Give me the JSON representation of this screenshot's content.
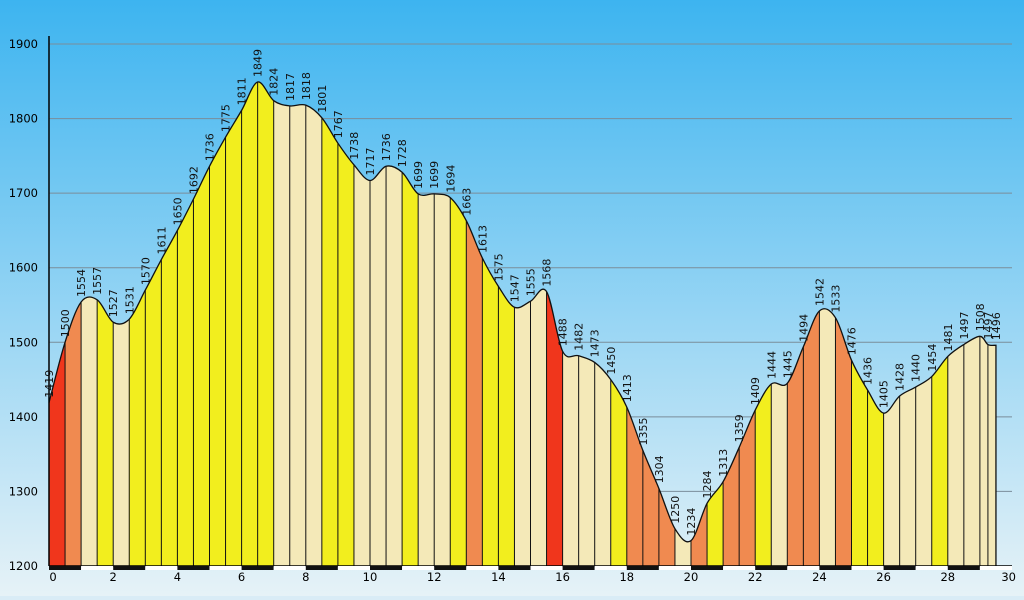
{
  "chart_data": {
    "type": "area",
    "title": "",
    "xlabel": "",
    "ylabel": "",
    "xlim": [
      0,
      30
    ],
    "ylim": [
      1200,
      1900
    ],
    "grid": true,
    "legend": "none",
    "x_ticks": [
      "0",
      "2",
      "4",
      "6",
      "8",
      "10",
      "12",
      "14",
      "16",
      "18",
      "20",
      "22",
      "24",
      "26",
      "28",
      "30"
    ],
    "y_ticks": [
      "1200",
      "1300",
      "1400",
      "1500",
      "1600",
      "1700",
      "1800",
      "1900"
    ],
    "colors": {
      "sky_top": "#3db4f0",
      "sky_bottom": "#e6f2f7",
      "grade_steep": "#f0361c",
      "grade_hard": "#f08a50",
      "grade_moderate": "#f2ee1e",
      "grade_flat": "#f4e9b8",
      "outline": "#111111"
    },
    "series": [
      {
        "points": [
          {
            "x": 0.0,
            "y": 1419,
            "label": "1419"
          },
          {
            "x": 0.5,
            "y": 1500,
            "label": "1500"
          },
          {
            "x": 1.0,
            "y": 1554,
            "label": "1554"
          },
          {
            "x": 1.5,
            "y": 1557,
            "label": "1557"
          },
          {
            "x": 2.0,
            "y": 1527,
            "label": "1527"
          },
          {
            "x": 2.5,
            "y": 1531,
            "label": "1531"
          },
          {
            "x": 3.0,
            "y": 1570,
            "label": "1570"
          },
          {
            "x": 3.5,
            "y": 1611,
            "label": "1611"
          },
          {
            "x": 4.0,
            "y": 1650,
            "label": "1650"
          },
          {
            "x": 4.5,
            "y": 1692,
            "label": "1692"
          },
          {
            "x": 5.0,
            "y": 1736,
            "label": "1736"
          },
          {
            "x": 5.5,
            "y": 1775,
            "label": "1775"
          },
          {
            "x": 6.0,
            "y": 1811,
            "label": "1811"
          },
          {
            "x": 6.5,
            "y": 1849,
            "label": "1849"
          },
          {
            "x": 7.0,
            "y": 1824,
            "label": "1824"
          },
          {
            "x": 7.5,
            "y": 1817,
            "label": "1817"
          },
          {
            "x": 8.0,
            "y": 1818,
            "label": "1818"
          },
          {
            "x": 8.5,
            "y": 1801,
            "label": "1801"
          },
          {
            "x": 9.0,
            "y": 1767,
            "label": "1767"
          },
          {
            "x": 9.5,
            "y": 1738,
            "label": "1738"
          },
          {
            "x": 10.0,
            "y": 1717,
            "label": "1717"
          },
          {
            "x": 10.5,
            "y": 1736,
            "label": "1736"
          },
          {
            "x": 11.0,
            "y": 1728,
            "label": "1728"
          },
          {
            "x": 11.5,
            "y": 1699,
            "label": "1699"
          },
          {
            "x": 12.0,
            "y": 1699,
            "label": "1699"
          },
          {
            "x": 12.5,
            "y": 1694,
            "label": "1694"
          },
          {
            "x": 13.0,
            "y": 1663,
            "label": "1663"
          },
          {
            "x": 13.5,
            "y": 1613,
            "label": "1613"
          },
          {
            "x": 14.0,
            "y": 1575,
            "label": "1575"
          },
          {
            "x": 14.5,
            "y": 1547,
            "label": "1547"
          },
          {
            "x": 15.0,
            "y": 1555,
            "label": "1555"
          },
          {
            "x": 15.5,
            "y": 1568,
            "label": "1568"
          },
          {
            "x": 16.0,
            "y": 1488,
            "label": "1488"
          },
          {
            "x": 16.5,
            "y": 1482,
            "label": "1482"
          },
          {
            "x": 17.0,
            "y": 1473,
            "label": "1473"
          },
          {
            "x": 17.5,
            "y": 1450,
            "label": "1450"
          },
          {
            "x": 18.0,
            "y": 1413,
            "label": "1413"
          },
          {
            "x": 18.5,
            "y": 1355,
            "label": "1355"
          },
          {
            "x": 19.0,
            "y": 1304,
            "label": "1304"
          },
          {
            "x": 19.5,
            "y": 1250,
            "label": "1250"
          },
          {
            "x": 20.0,
            "y": 1234,
            "label": "1234"
          },
          {
            "x": 20.5,
            "y": 1284,
            "label": "1284"
          },
          {
            "x": 21.0,
            "y": 1313,
            "label": "1313"
          },
          {
            "x": 21.5,
            "y": 1359,
            "label": "1359"
          },
          {
            "x": 22.0,
            "y": 1409,
            "label": "1409"
          },
          {
            "x": 22.5,
            "y": 1444,
            "label": "1444"
          },
          {
            "x": 23.0,
            "y": 1445,
            "label": "1445"
          },
          {
            "x": 23.5,
            "y": 1494,
            "label": "1494"
          },
          {
            "x": 24.0,
            "y": 1542,
            "label": "1542"
          },
          {
            "x": 24.5,
            "y": 1533,
            "label": "1533"
          },
          {
            "x": 25.0,
            "y": 1476,
            "label": "1476"
          },
          {
            "x": 25.5,
            "y": 1436,
            "label": "1436"
          },
          {
            "x": 26.0,
            "y": 1405,
            "label": "1405"
          },
          {
            "x": 26.5,
            "y": 1428,
            "label": "1428"
          },
          {
            "x": 27.0,
            "y": 1440,
            "label": "1440"
          },
          {
            "x": 27.5,
            "y": 1454,
            "label": "1454"
          },
          {
            "x": 28.0,
            "y": 1481,
            "label": "1481"
          },
          {
            "x": 28.5,
            "y": 1497,
            "label": "1497"
          },
          {
            "x": 29.0,
            "y": 1508,
            "label": "1508"
          },
          {
            "x": 29.25,
            "y": 1497,
            "label": "1497"
          },
          {
            "x": 29.5,
            "y": 1496,
            "label": "1496"
          }
        ]
      }
    ]
  }
}
